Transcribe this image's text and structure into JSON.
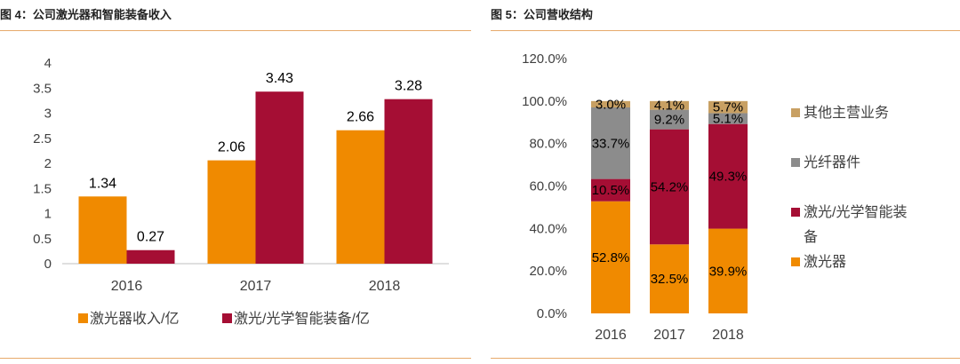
{
  "panels": {
    "left": {
      "title": "图 4：公司激光器和智能装备收入"
    },
    "right": {
      "title": "图 5：公司营收结构"
    }
  },
  "colors": {
    "orange": "#f08a00",
    "crimson": "#a50e34",
    "gray": "#8c8c8c",
    "tan": "#c8a063",
    "axis": "#bfbfbf",
    "rule": "#e7a96b"
  },
  "chart_data": [
    {
      "type": "bar",
      "title": "图 4：公司激光器和智能装备收入",
      "categories": [
        "2016",
        "2017",
        "2018"
      ],
      "series": [
        {
          "name": "激光器收入/亿",
          "values": [
            1.34,
            2.06,
            2.66
          ],
          "labels": [
            "1.34",
            "2.06",
            "2.66"
          ]
        },
        {
          "name": "激光/光学智能装备/亿",
          "values": [
            0.27,
            3.43,
            3.28
          ],
          "labels": [
            "0.27",
            "3.43",
            "3.28"
          ]
        }
      ],
      "ylim": [
        0,
        4
      ],
      "yticks": [
        "0",
        "0.5",
        "1",
        "1.5",
        "2",
        "2.5",
        "3",
        "3.5",
        "4"
      ],
      "grid": false,
      "legend": "bottom"
    },
    {
      "type": "bar",
      "stacked": true,
      "title": "图 5：公司营收结构",
      "categories": [
        "2016",
        "2017",
        "2018"
      ],
      "series": [
        {
          "name": "激光器",
          "values": [
            52.8,
            32.5,
            39.9
          ],
          "labels": [
            "52.8%",
            "32.5%",
            "39.9%"
          ]
        },
        {
          "name": "激光/光学智能装备",
          "values": [
            10.5,
            54.2,
            49.3
          ],
          "labels": [
            "10.5%",
            "54.2%",
            "49.3%"
          ]
        },
        {
          "name": "光纤器件",
          "values": [
            33.7,
            9.2,
            5.1
          ],
          "labels": [
            "33.7%",
            "9.2%",
            "5.1%"
          ]
        },
        {
          "name": "其他主营业务",
          "values": [
            3.0,
            4.1,
            5.7
          ],
          "labels": [
            "3.0%",
            "4.1%",
            "5.7%"
          ]
        }
      ],
      "ylim": [
        0,
        120
      ],
      "yticks": [
        "0.0%",
        "20.0%",
        "40.0%",
        "60.0%",
        "80.0%",
        "100.0%",
        "120.0%"
      ],
      "grid": false,
      "legend": "right"
    }
  ]
}
